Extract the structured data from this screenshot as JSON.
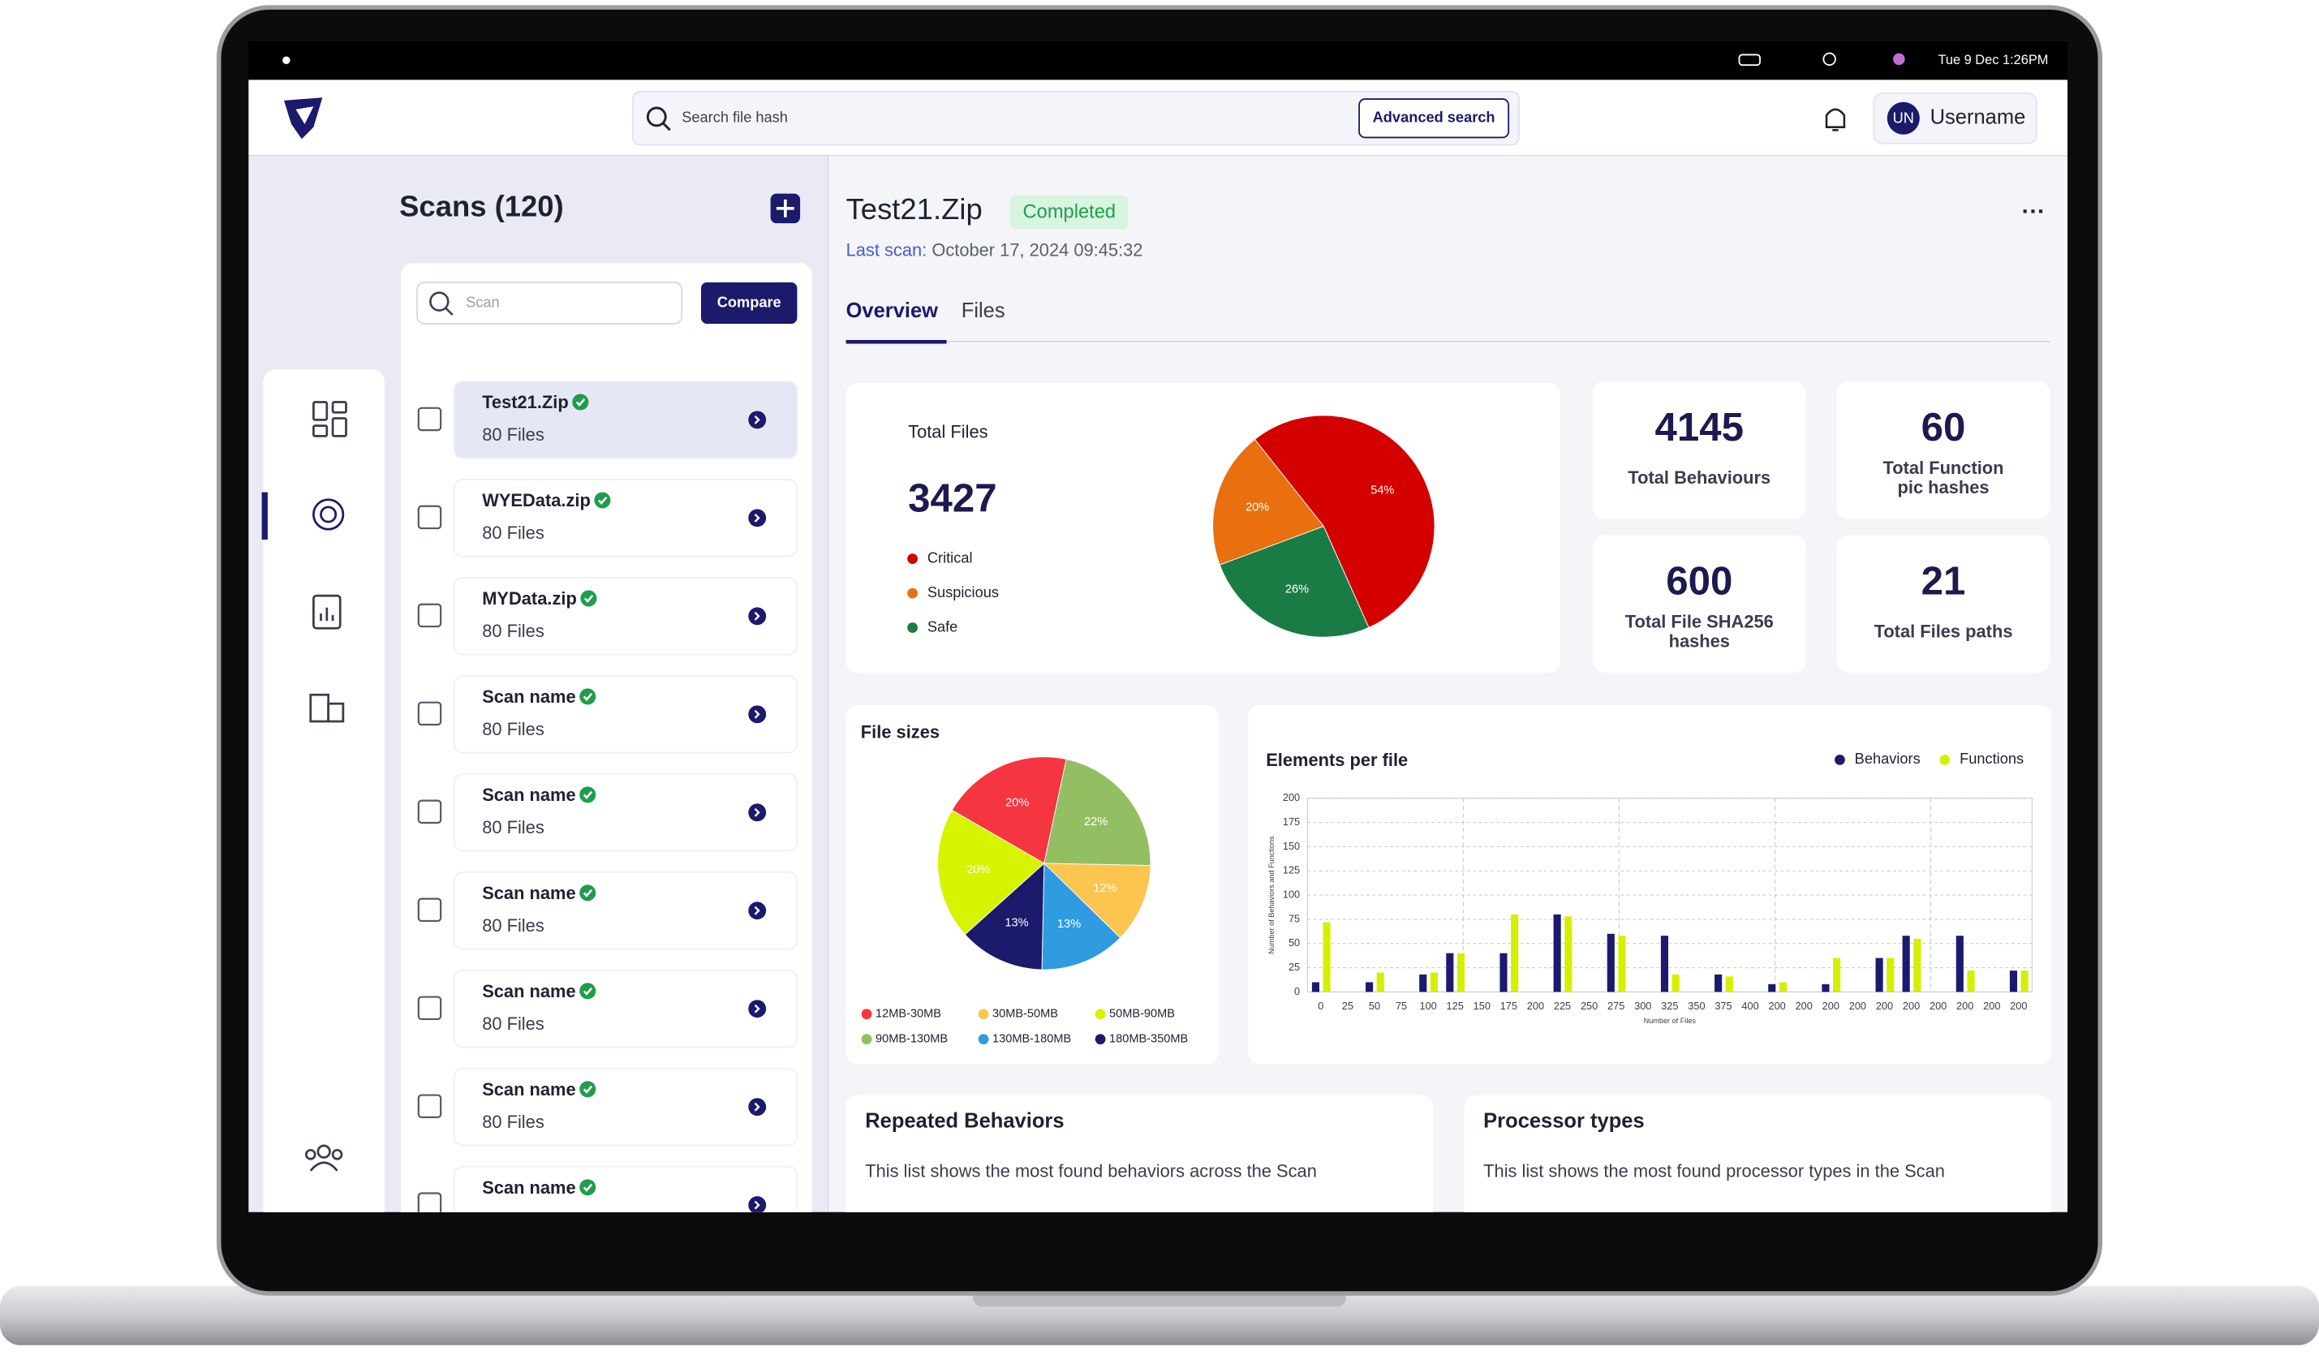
{
  "menubar": {
    "clock": "Tue 9 Dec  1:26PM"
  },
  "header": {
    "search_placeholder": "Search file hash",
    "advanced_search": "Advanced search",
    "avatar": "UN",
    "username": "Username"
  },
  "scans": {
    "title": "Scans (120)",
    "search_placeholder": "Scan",
    "compare": "Compare",
    "items": [
      {
        "name": "Test21.Zip",
        "files": "80 Files"
      },
      {
        "name": "WYEData.zip",
        "files": "80 Files"
      },
      {
        "name": "MYData.zip",
        "files": "80 Files"
      },
      {
        "name": "Scan name",
        "files": "80 Files"
      },
      {
        "name": "Scan name",
        "files": "80 Files"
      },
      {
        "name": "Scan name",
        "files": "80 Files"
      },
      {
        "name": "Scan name",
        "files": "80 Files"
      },
      {
        "name": "Scan name",
        "files": "80 Files"
      },
      {
        "name": "Scan name"
      }
    ]
  },
  "detail": {
    "title": "Test21.Zip",
    "status": "Completed",
    "last_scan_label": "Last scan:",
    "last_scan_date": " October 17, 2024 09:45:32",
    "tabs": [
      "Overview",
      "Files"
    ]
  },
  "total_files": {
    "title": "Total Files",
    "value": 3427,
    "chart": {
      "type": "pie",
      "categories": [
        "Critical",
        "Suspicious",
        "Safe"
      ],
      "values": [
        54,
        20,
        26
      ],
      "value_labels": [
        "54%",
        "20%",
        "26%"
      ],
      "colors": [
        "#d40000",
        "#ea6f0e",
        "#1a7c45"
      ]
    }
  },
  "stats": [
    {
      "value": 4145,
      "label_lines": [
        "Total Behaviours"
      ]
    },
    {
      "value": 60,
      "label_lines": [
        "Total Function",
        "pic hashes"
      ]
    },
    {
      "value": 600,
      "label_lines": [
        "Total File SHA256",
        "hashes"
      ]
    },
    {
      "value": 21,
      "label_lines": [
        "Total Files paths"
      ]
    }
  ],
  "file_sizes": {
    "title": "File sizes",
    "chart": {
      "type": "pie",
      "categories": [
        "12MB-30MB",
        "90MB-130MB",
        "30MB-50MB",
        "130MB-180MB",
        "180MB-350MB",
        "50MB-90MB"
      ],
      "values": [
        20,
        22,
        12,
        13,
        13,
        20
      ],
      "value_labels": [
        "20%",
        "22%",
        "12%",
        "13%",
        "13%",
        "20%"
      ],
      "colors": [
        "#f5353f",
        "#93bf62",
        "#fbc550",
        "#2f9be0",
        "#1c1a6b",
        "#d6f400"
      ]
    }
  },
  "elements_per_file": {
    "title": "Elements per file",
    "chart": {
      "type": "bar",
      "categories": [
        "0",
        "25",
        "50",
        "75",
        "100",
        "125",
        "150",
        "175",
        "200",
        "225",
        "250",
        "275",
        "300",
        "325",
        "350",
        "375",
        "400",
        "200",
        "200",
        "200",
        "200",
        "200",
        "200",
        "200",
        "200",
        "200",
        "200"
      ],
      "series": [
        {
          "name": "Behaviors",
          "color": "#1b1a6e",
          "values": [
            10,
            null,
            10,
            null,
            18,
            40,
            null,
            40,
            null,
            80,
            null,
            60,
            null,
            58,
            null,
            18,
            null,
            8,
            null,
            8,
            null,
            35,
            58,
            null,
            58,
            null,
            22
          ]
        },
        {
          "name": "Functions",
          "color": "#d4f000",
          "values": [
            72,
            null,
            20,
            null,
            20,
            40,
            null,
            80,
            null,
            78,
            null,
            58,
            null,
            18,
            null,
            16,
            null,
            10,
            null,
            35,
            null,
            35,
            55,
            null,
            22,
            null,
            22
          ]
        }
      ],
      "ylim": [
        0,
        200
      ],
      "yticks": [
        0,
        25,
        50,
        75,
        100,
        125,
        150,
        175,
        200
      ],
      "y_label": "Number of Behaviors and Functions",
      "x_label": "Number of Files",
      "grid": true
    }
  },
  "repeated_behaviors": {
    "title": "Repeated Behaviors",
    "description": "This list shows the most found behaviors across the Scan"
  },
  "processor_types": {
    "title": "Processor types",
    "description": "This list shows the most found processor types in the Scan"
  }
}
